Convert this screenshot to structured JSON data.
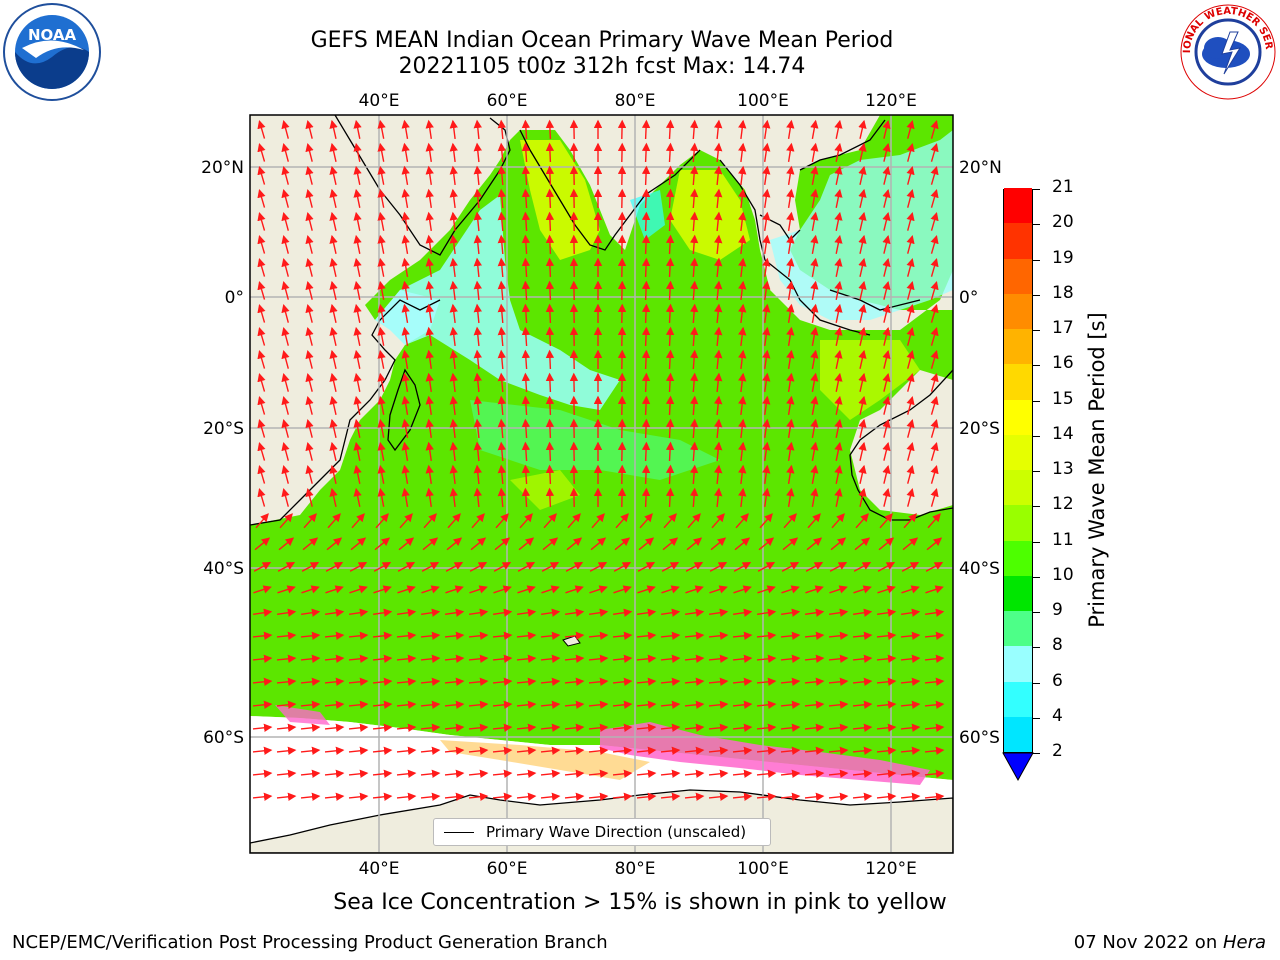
{
  "title": {
    "line1": "GEFS MEAN Indian Ocean Primary Wave Mean Period",
    "line2": "20221105 t00z 312h fcst   Max: 14.74"
  },
  "logos": {
    "left": {
      "icon": "noaa-logo",
      "text": "NOAA"
    },
    "right": {
      "icon": "nws-logo",
      "text": "NATIONAL WEATHER SERVICE"
    }
  },
  "map": {
    "lon_labels": [
      "40°E",
      "60°E",
      "80°E",
      "100°E",
      "120°E"
    ],
    "lat_labels": [
      "20°N",
      "0°",
      "20°S",
      "40°S",
      "60°S"
    ],
    "legend": "Primary Wave Direction (unscaled)",
    "colors": {
      "land": "#efedde",
      "ocean_base": "#5ce600",
      "arrow": "#ff1a1a",
      "ice": "#ff66cc"
    }
  },
  "colorbar": {
    "label": "Primary Wave Mean Period [s]",
    "ticks": [
      "2",
      "4",
      "6",
      "8",
      "9",
      "10",
      "11",
      "12",
      "13",
      "14",
      "15",
      "16",
      "17",
      "18",
      "19",
      "20",
      "21"
    ],
    "colors": [
      "#0066ff",
      "#00e6ff",
      "#33ffff",
      "#99ffff",
      "#4dff88",
      "#00e600",
      "#4dff00",
      "#99ff00",
      "#ccff00",
      "#e6ff00",
      "#ffff00",
      "#ffd900",
      "#ffb300",
      "#ff8c00",
      "#ff6600",
      "#ff3300",
      "#ff0000"
    ]
  },
  "caption": "Sea Ice Concentration > 15% is shown in pink to yellow",
  "footer": {
    "left": "NCEP/EMC/Verification Post Processing Product Generation Branch",
    "right_date": "07 Nov 2022 on ",
    "right_host": "Hera"
  }
}
